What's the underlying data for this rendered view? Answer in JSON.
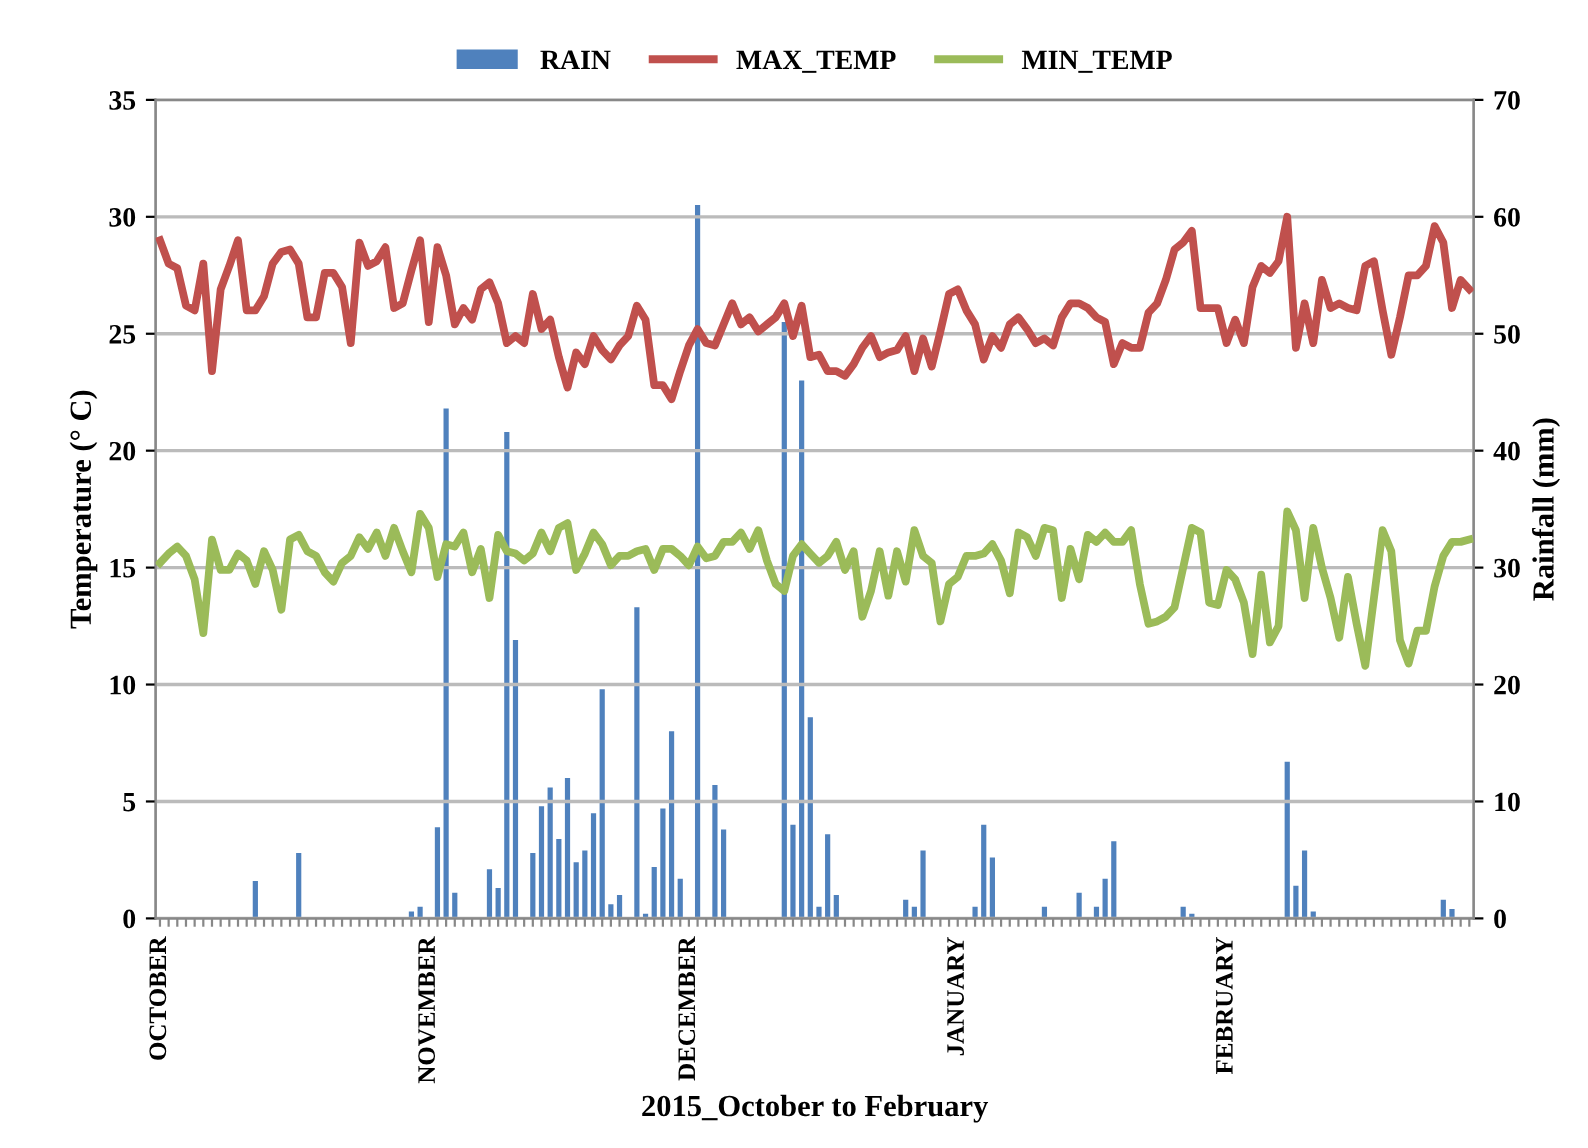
{
  "chart_data": {
    "type": "line",
    "xlabel": "2015_October to February",
    "ylabel": "Temperature (° C)",
    "y2label": "Rainfall (mm)",
    "categories": [
      "OCTOBER",
      null,
      null,
      null,
      null,
      null,
      null,
      null,
      null,
      null,
      null,
      null,
      null,
      null,
      null,
      null,
      null,
      null,
      null,
      null,
      null,
      null,
      null,
      null,
      null,
      null,
      null,
      null,
      null,
      null,
      null,
      "NOVEMBER",
      null,
      null,
      null,
      null,
      null,
      null,
      null,
      null,
      null,
      null,
      null,
      null,
      null,
      null,
      null,
      null,
      null,
      null,
      null,
      null,
      null,
      null,
      null,
      null,
      null,
      null,
      null,
      null,
      null,
      "DECEMBER",
      null,
      null,
      null,
      null,
      null,
      null,
      null,
      null,
      null,
      null,
      null,
      null,
      null,
      null,
      null,
      null,
      null,
      null,
      null,
      null,
      null,
      null,
      null,
      null,
      null,
      null,
      null,
      null,
      null,
      null,
      "JANUARY",
      null,
      null,
      null,
      null,
      null,
      null,
      null,
      null,
      null,
      null,
      null,
      null,
      null,
      null,
      null,
      null,
      null,
      null,
      null,
      null,
      null,
      null,
      null,
      null,
      null,
      null,
      null,
      null,
      null,
      null,
      "FEBRUARY",
      null,
      null,
      null,
      null,
      null,
      null,
      null,
      null,
      null,
      null,
      null,
      null,
      null,
      null,
      null,
      null,
      null,
      null,
      null,
      null,
      null,
      null,
      null,
      null,
      null,
      null,
      null,
      null
    ],
    "series": [
      {
        "name": "RAIN",
        "type": "bar",
        "axis": "y2",
        "color": "#4f81bd",
        "values": [
          0,
          0,
          0,
          0,
          0,
          0,
          0,
          0,
          0,
          0,
          0,
          3.2,
          0,
          0,
          0,
          0,
          5.6,
          0,
          0,
          0,
          0,
          0,
          0,
          0,
          0,
          0,
          0,
          0,
          0,
          0.6,
          1.0,
          0,
          7.8,
          43.6,
          2.2,
          0,
          0,
          0,
          4.2,
          2.6,
          41.6,
          23.8,
          0,
          5.6,
          9.6,
          11.2,
          6.8,
          12,
          4.8,
          5.8,
          9.0,
          19.6,
          1.2,
          2.0,
          0,
          26.6,
          0.4,
          4.4,
          9.4,
          16,
          3.4,
          0,
          61,
          0,
          11.4,
          7.6,
          0,
          0,
          0,
          0,
          0,
          0,
          51,
          8,
          46,
          17.2,
          1,
          7.2,
          2,
          0,
          0,
          0,
          0,
          0,
          0,
          0,
          1.6,
          1,
          5.8,
          0,
          0,
          0,
          0,
          0,
          1,
          8,
          5.2,
          0,
          0,
          0,
          0,
          0,
          1,
          0,
          0,
          0,
          2.2,
          0,
          1,
          3.4,
          6.6,
          0,
          0,
          0,
          0,
          0,
          0,
          0,
          1,
          0.4,
          0,
          0,
          0,
          0,
          0,
          0,
          0,
          0,
          0,
          0,
          13.4,
          2.8,
          5.8,
          0.6,
          0,
          0,
          0,
          0,
          0,
          0,
          0,
          0,
          0,
          0,
          0,
          0,
          0,
          0,
          1.6,
          0.8,
          0,
          0
        ]
      },
      {
        "name": "MAX_TEMP",
        "color": "#c0504d",
        "values": [
          29.0,
          28.0,
          27.8,
          26.2,
          26.0,
          28.0,
          23.4,
          26.9,
          27.9,
          29.0,
          26.0,
          26.0,
          26.6,
          28.0,
          28.5,
          28.6,
          28.0,
          25.7,
          25.7,
          27.6,
          27.6,
          27.0,
          24.6,
          28.9,
          27.9,
          28.1,
          28.7,
          26.1,
          26.3,
          27.7,
          29.0,
          25.5,
          28.7,
          27.5,
          25.4,
          26.1,
          25.6,
          26.9,
          27.2,
          26.3,
          24.6,
          24.9,
          24.6,
          26.7,
          25.2,
          25.6,
          24.0,
          22.7,
          24.2,
          23.7,
          24.9,
          24.3,
          23.9,
          24.5,
          24.9,
          26.2,
          25.6,
          22.8,
          22.8,
          22.2,
          23.4,
          24.5,
          25.2,
          24.6,
          24.5,
          25.4,
          26.3,
          25.4,
          25.7,
          25.1,
          25.4,
          25.7,
          26.3,
          24.9,
          26.2,
          24.0,
          24.1,
          23.4,
          23.4,
          23.2,
          23.7,
          24.4,
          24.9,
          24.0,
          24.2,
          24.3,
          24.9,
          23.4,
          24.8,
          23.6,
          25.1,
          26.7,
          26.9,
          26.0,
          25.4,
          23.9,
          24.9,
          24.4,
          25.4,
          25.7,
          25.2,
          24.6,
          24.8,
          24.5,
          25.7,
          26.3,
          26.3,
          26.1,
          25.7,
          25.5,
          23.7,
          24.6,
          24.4,
          24.4,
          25.9,
          26.3,
          27.3,
          28.6,
          28.9,
          29.4,
          26.1,
          26.1,
          26.1,
          24.6,
          25.6,
          24.6,
          27.0,
          27.9,
          27.6,
          28.1,
          30.0,
          24.4,
          26.3,
          24.6,
          27.3,
          26.1,
          26.3,
          26.1,
          26.0,
          27.9,
          28.1,
          26.0,
          24.1,
          25.7,
          27.5,
          27.5,
          27.9,
          29.6,
          28.9,
          26.1,
          27.3,
          26.9
        ]
      },
      {
        "name": "MIN_TEMP",
        "color": "#9bbb59",
        "values": [
          15.2,
          15.6,
          15.9,
          15.5,
          14.5,
          12.2,
          16.2,
          14.9,
          14.9,
          15.6,
          15.3,
          14.3,
          15.7,
          14.9,
          13.2,
          16.2,
          16.4,
          15.7,
          15.5,
          14.8,
          14.4,
          15.2,
          15.5,
          16.3,
          15.8,
          16.5,
          15.5,
          16.7,
          15.7,
          14.8,
          17.3,
          16.7,
          14.6,
          16.0,
          15.9,
          16.5,
          14.8,
          15.8,
          13.7,
          16.4,
          15.7,
          15.6,
          15.3,
          15.6,
          16.5,
          15.7,
          16.7,
          16.9,
          14.9,
          15.6,
          16.5,
          16.0,
          15.1,
          15.5,
          15.5,
          15.7,
          15.8,
          14.9,
          15.8,
          15.8,
          15.5,
          15.1,
          15.9,
          15.4,
          15.5,
          16.1,
          16.1,
          16.5,
          15.8,
          16.6,
          15.3,
          14.3,
          14.0,
          15.5,
          16.0,
          15.6,
          15.2,
          15.5,
          16.1,
          14.9,
          15.7,
          12.9,
          14.0,
          15.7,
          13.8,
          15.7,
          14.4,
          16.6,
          15.5,
          15.2,
          12.7,
          14.3,
          14.6,
          15.5,
          15.5,
          15.6,
          16.0,
          15.3,
          13.9,
          16.5,
          16.3,
          15.5,
          16.7,
          16.6,
          13.7,
          15.8,
          14.5,
          16.4,
          16.1,
          16.5,
          16.1,
          16.1,
          16.6,
          14.3,
          12.6,
          12.7,
          12.9,
          13.3,
          15.0,
          16.7,
          16.5,
          13.5,
          13.4,
          14.9,
          14.5,
          13.5,
          11.3,
          14.7,
          11.8,
          12.5,
          17.4,
          16.6,
          13.7,
          16.7,
          15.0,
          13.7,
          12.0,
          14.6,
          12.6,
          10.8,
          13.7,
          16.6,
          15.7,
          11.9,
          10.9,
          12.3,
          12.3,
          14.2,
          15.5,
          16.1,
          16.1,
          16.2
        ]
      }
    ],
    "ylim": [
      0,
      35
    ],
    "yticks": [
      0,
      5,
      10,
      15,
      20,
      25,
      30,
      35
    ],
    "y2lim": [
      0,
      70
    ],
    "y2ticks": [
      0,
      10,
      20,
      30,
      40,
      50,
      60,
      70
    ],
    "grid": "y",
    "legend": "top"
  }
}
